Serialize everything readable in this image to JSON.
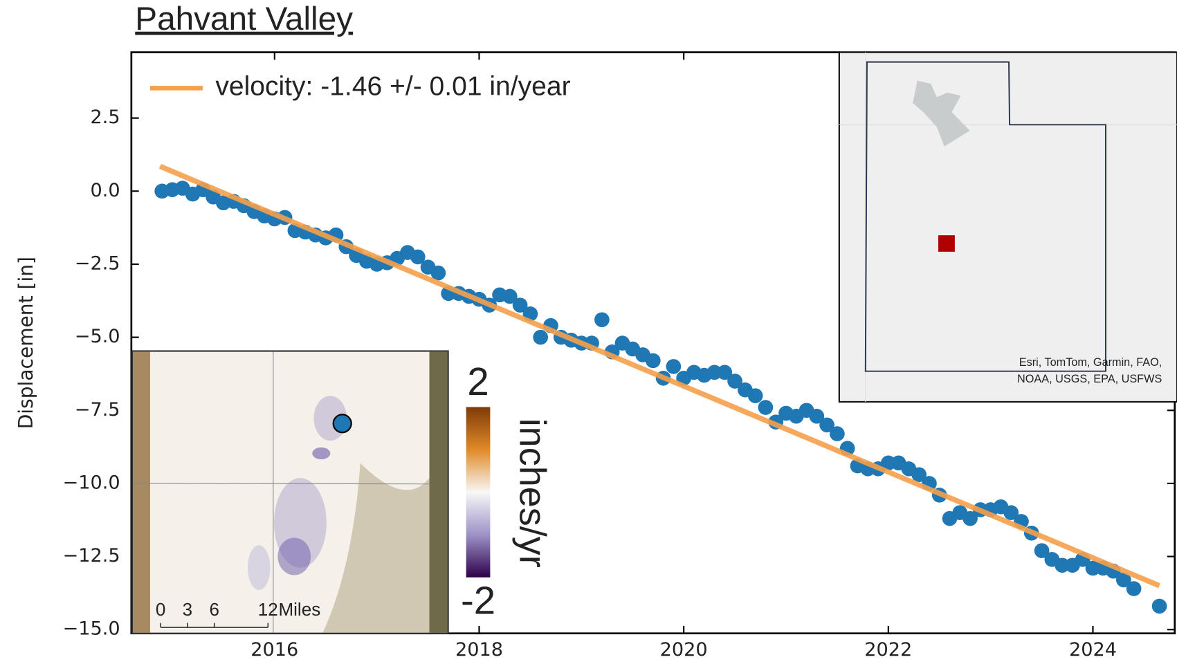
{
  "chart_data": {
    "type": "scatter",
    "title": "Pahvant Valley",
    "y_label": "Displacement [in]",
    "xlim": [
      2014.6,
      2024.8
    ],
    "ylim": [
      -15.13,
      4.75
    ],
    "xticks": [
      2016,
      2018,
      2020,
      2022,
      2024
    ],
    "yticks": [
      2.5,
      {
        "value": 0,
        "label": "0.0"
      },
      {
        "value": -2.5,
        "label": "−2.5"
      },
      {
        "value": -5,
        "label": "−5.0"
      },
      {
        "value": -7.5,
        "label": "−7.5"
      },
      {
        "value": -10,
        "label": "−10.0"
      },
      {
        "value": -12.5,
        "label": "−12.5"
      },
      {
        "value": -15,
        "label": "−15.0"
      }
    ],
    "color": "#1f77b4",
    "x": [
      2014.9,
      2015.0,
      2015.1,
      2015.2,
      2015.3,
      2015.4,
      2015.5,
      2015.6,
      2015.7,
      2015.8,
      2015.9,
      2016.0,
      2016.1,
      2016.2,
      2016.3,
      2016.4,
      2016.5,
      2016.6,
      2016.7,
      2016.8,
      2016.9,
      2017.0,
      2017.1,
      2017.2,
      2017.3,
      2017.4,
      2017.5,
      2017.6,
      2017.7,
      2017.8,
      2017.9,
      2018.0,
      2018.1,
      2018.2,
      2018.3,
      2018.4,
      2018.5,
      2018.6,
      2018.7,
      2018.8,
      2018.9,
      2019.0,
      2019.1,
      2019.2,
      2019.3,
      2019.4,
      2019.5,
      2019.6,
      2019.7,
      2019.8,
      2019.9,
      2020.0,
      2020.1,
      2020.2,
      2020.3,
      2020.4,
      2020.5,
      2020.6,
      2020.7,
      2020.8,
      2020.9,
      2021.0,
      2021.1,
      2021.2,
      2021.3,
      2021.4,
      2021.5,
      2021.6,
      2021.7,
      2021.8,
      2021.9,
      2022.0,
      2022.1,
      2022.2,
      2022.3,
      2022.4,
      2022.5,
      2022.6,
      2022.7,
      2022.8,
      2022.9,
      2023.0,
      2023.1,
      2023.2,
      2023.3,
      2023.4,
      2023.5,
      2023.6,
      2023.7,
      2023.8,
      2023.9,
      2024.0,
      2024.1,
      2024.2,
      2024.3,
      2024.4,
      2024.65
    ],
    "values": [
      0.0,
      0.05,
      0.1,
      -0.1,
      0.05,
      -0.2,
      -0.4,
      -0.35,
      -0.5,
      -0.7,
      -0.85,
      -0.95,
      -0.9,
      -1.35,
      -1.4,
      -1.5,
      -1.6,
      -1.5,
      -1.9,
      -2.2,
      -2.4,
      -2.5,
      -2.45,
      -2.3,
      -2.1,
      -2.25,
      -2.6,
      -2.8,
      -3.5,
      -3.5,
      -3.6,
      -3.7,
      -3.9,
      -3.55,
      -3.6,
      -3.9,
      -4.2,
      -5.0,
      -4.6,
      -5.0,
      -5.1,
      -5.2,
      -5.2,
      -4.4,
      -5.5,
      -5.2,
      -5.4,
      -5.6,
      -5.8,
      -6.4,
      -6.0,
      -6.4,
      -6.2,
      -6.3,
      -6.2,
      -6.2,
      -6.5,
      -6.8,
      -7.0,
      -7.4,
      -7.9,
      -7.6,
      -7.7,
      -7.5,
      -7.7,
      -8.0,
      -8.3,
      -8.8,
      -9.4,
      -9.5,
      -9.5,
      -9.3,
      -9.3,
      -9.5,
      -9.7,
      -10.0,
      -10.4,
      -11.2,
      -11.0,
      -11.2,
      -10.9,
      -10.9,
      -10.8,
      -11.0,
      -11.3,
      -11.7,
      -12.3,
      -12.6,
      -12.8,
      -12.8,
      -12.6,
      -12.9,
      -12.9,
      -13.0,
      -13.3,
      -13.6,
      -14.2
    ],
    "series": [
      {
        "name": "velocity: -1.46 +/- 0.01 in/year",
        "color": "#f5a04a",
        "x": [
          2014.88,
          2024.65
        ],
        "values": [
          0.85,
          -13.5
        ]
      }
    ],
    "legend": "upper left"
  },
  "location_map": {
    "attribution_lines": [
      "Esri, TomTom, Garmin, FAO,",
      "NOAA, USGS, EPA, USFWS"
    ]
  },
  "velocity_map": {
    "colorbar": {
      "label": "inches/yr",
      "lim": [
        -2,
        2
      ],
      "ticks": [
        2,
        -2
      ]
    },
    "scale_bar": {
      "ticks": [
        0,
        3,
        6,
        12
      ],
      "unit": "Miles"
    }
  }
}
